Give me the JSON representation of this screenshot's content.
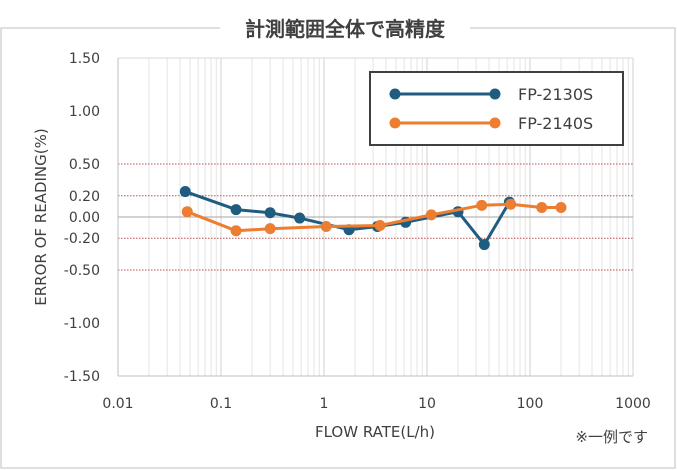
{
  "chart_data": {
    "type": "line",
    "title": "計測範囲全体で高精度",
    "xlabel": "FLOW RATE(L/h)",
    "ylabel": "ERROR OF READING(%)",
    "x_scale": "log",
    "xlim": [
      0.01,
      1000
    ],
    "ylim": [
      -1.5,
      1.5
    ],
    "x_ticks": [
      "0.01",
      "0.1",
      "1",
      "10",
      "100",
      "1000"
    ],
    "x_tick_values": [
      0.01,
      0.1,
      1,
      10,
      100,
      1000
    ],
    "y_ticks": [
      "1.50",
      "1.00",
      "0.50",
      "0.20",
      "0.00",
      "-0.20",
      "-0.50",
      "-1.00",
      "-1.50"
    ],
    "y_tick_values": [
      1.5,
      1.0,
      0.5,
      0.2,
      0.0,
      -0.2,
      -0.5,
      -1.0,
      -1.5
    ],
    "reference_lines": [
      0.5,
      0.2,
      -0.2,
      -0.5
    ],
    "grid": "vertical-log-minor",
    "legend_position": "top-right",
    "series": [
      {
        "name": "FP-2130S",
        "color": "#1f5c80",
        "x": [
          0.045,
          0.14,
          0.3,
          0.58,
          1.75,
          3.3,
          6.2,
          20,
          36,
          63
        ],
        "y": [
          0.24,
          0.07,
          0.04,
          -0.01,
          -0.12,
          -0.09,
          -0.05,
          0.05,
          -0.26,
          0.14
        ]
      },
      {
        "name": "FP-2140S",
        "color": "#ed7d31",
        "x": [
          0.047,
          0.14,
          0.3,
          1.05,
          3.5,
          11,
          34,
          65,
          130,
          200
        ],
        "y": [
          0.05,
          -0.13,
          -0.11,
          -0.09,
          -0.08,
          0.02,
          0.11,
          0.12,
          0.09,
          0.09
        ]
      }
    ]
  },
  "note": "※一例です"
}
